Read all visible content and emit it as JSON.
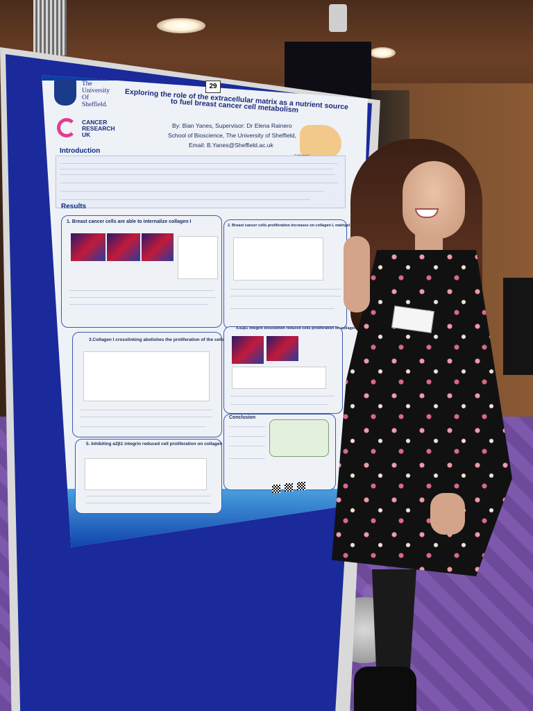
{
  "poster": {
    "board_number": "29",
    "university": [
      "The",
      "University",
      "Of",
      "Sheffield."
    ],
    "charity": [
      "CANCER",
      "RESEARCH",
      "UK"
    ],
    "title_line1": "Exploring the role of the extracellular matrix as a nutrient source",
    "title_line2": "to fuel breast cancer cell metabolism",
    "author_line": "By: Bian Yanes, Supervisor: Dr Elena Rainero",
    "affiliation": "School of Bioscience, The University of Sheffield,",
    "email": "Email: B.Yanes@Sheffield.ac.uk",
    "diagram_label": "Collagen I",
    "section_intro": "Introduction",
    "section_results": "Results",
    "panel1_title": "1. Breast cancer cells are able to internalize collagen I",
    "panel2_title": "2. Breast cancer cells proliferation increases on collagen I, matrigel and CDM under starvation",
    "panel3_title": "3.Collagen I crosslinking abolishes the proliferation of the cells under starvation",
    "panel4_title": "4.α2β1 integrin knockdown reduced cells proliferation on collagen I under starvation",
    "panel5_title": "5. Inhibiting α2β1 integrin reduced cell proliferation on collagen I under starvation",
    "section_conclusion": "Conclusion"
  }
}
